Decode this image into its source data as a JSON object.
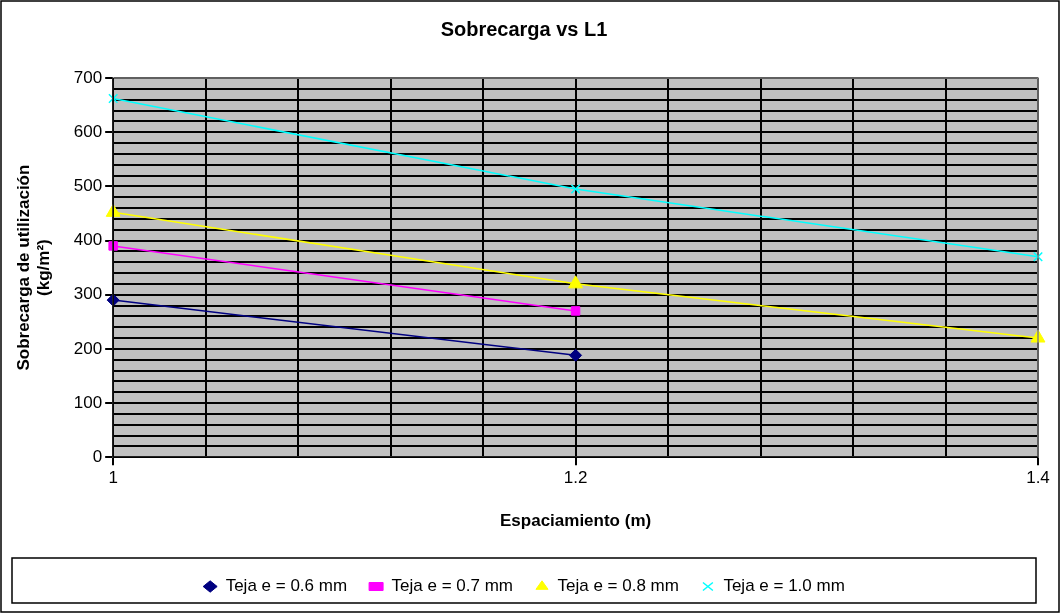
{
  "chart_data": {
    "type": "line",
    "title": "Sobrecarga vs L1",
    "xlabel": "Espaciamiento (m)",
    "ylabel": "Sobrecarga de utilización (kg/m²)",
    "series": [
      {
        "name": "Teja e = 0.6 mm",
        "color": "#000080",
        "marker": "diamond",
        "x": [
          1,
          1.2
        ],
        "values": [
          290,
          188
        ]
      },
      {
        "name": "Teja e = 0.7 mm",
        "color": "#ff00ff",
        "marker": "square",
        "x": [
          1,
          1.2
        ],
        "values": [
          390,
          270
        ]
      },
      {
        "name": "Teja e = 0.8 mm",
        "color": "#ffff00",
        "marker": "triangle",
        "x": [
          1,
          1.2,
          1.4
        ],
        "values": [
          452,
          320,
          220
        ]
      },
      {
        "name": "Teja e = 1.0 mm",
        "color": "#00ffff",
        "marker": "cross",
        "x": [
          1,
          1.2,
          1.4
        ],
        "values": [
          662,
          495,
          370
        ]
      }
    ],
    "xlim": [
      1,
      1.4
    ],
    "xticks": [
      1,
      {
        "value": 1.04,
        "label": null
      },
      {
        "value": 1.08,
        "label": null
      },
      {
        "value": 1.12,
        "label": null
      },
      {
        "value": 1.16,
        "label": null
      },
      1.2,
      {
        "value": 1.24,
        "label": null
      },
      {
        "value": 1.28,
        "label": null
      },
      {
        "value": 1.32,
        "label": null
      },
      {
        "value": 1.36,
        "label": null
      },
      1.4
    ],
    "ylim": [
      0,
      700
    ],
    "yticks": [
      0,
      {
        "value": 20,
        "label": null
      },
      {
        "value": 40,
        "label": null
      },
      {
        "value": 60,
        "label": null
      },
      {
        "value": 80,
        "label": null
      },
      100,
      {
        "value": 120,
        "label": null
      },
      {
        "value": 140,
        "label": null
      },
      {
        "value": 160,
        "label": null
      },
      {
        "value": 180,
        "label": null
      },
      200,
      {
        "value": 220,
        "label": null
      },
      {
        "value": 240,
        "label": null
      },
      {
        "value": 260,
        "label": null
      },
      {
        "value": 280,
        "label": null
      },
      300,
      {
        "value": 320,
        "label": null
      },
      {
        "value": 340,
        "label": null
      },
      {
        "value": 360,
        "label": null
      },
      {
        "value": 380,
        "label": null
      },
      400,
      {
        "value": 420,
        "label": null
      },
      {
        "value": 440,
        "label": null
      },
      {
        "value": 460,
        "label": null
      },
      {
        "value": 480,
        "label": null
      },
      500,
      {
        "value": 520,
        "label": null
      },
      {
        "value": 540,
        "label": null
      },
      {
        "value": 560,
        "label": null
      },
      {
        "value": 580,
        "label": null
      },
      600,
      {
        "value": 620,
        "label": null
      },
      {
        "value": 640,
        "label": null
      },
      {
        "value": 660,
        "label": null
      },
      {
        "value": 680,
        "label": null
      },
      700
    ],
    "grid": true,
    "legend": "bottom",
    "line_style": "solid"
  }
}
